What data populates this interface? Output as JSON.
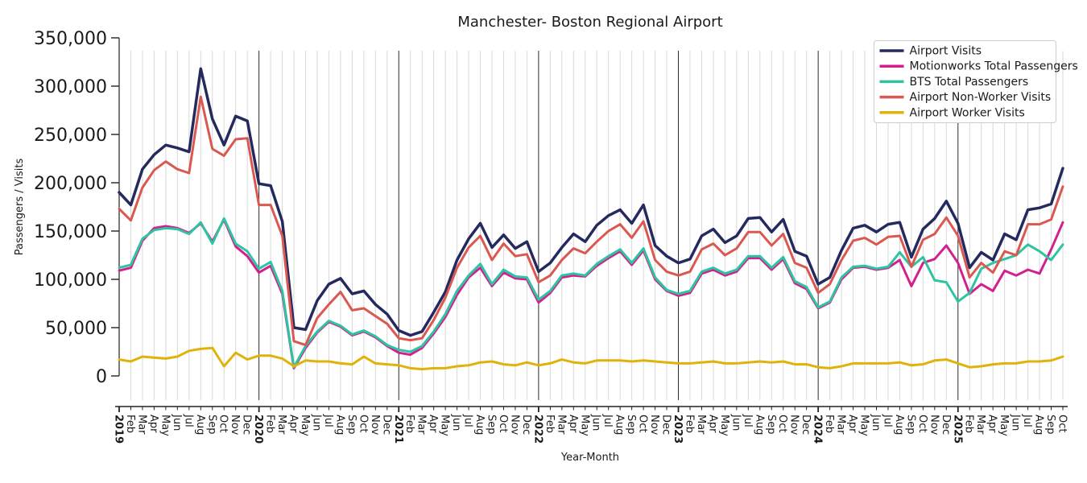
{
  "title": "Manchester- Boston Regional Airport",
  "chart_data": {
    "type": "line",
    "title": "Manchester- Boston Regional Airport",
    "xlabel": "Year-Month",
    "ylabel": "Passengers / Visits",
    "ylim": [
      0,
      350000
    ],
    "y_ticks": [
      0,
      50000,
      100000,
      150000,
      200000,
      250000,
      300000,
      350000
    ],
    "grid": "vertical gridline per month, dark vertical line at each January",
    "legend_position": "upper right",
    "x_labels": [
      "2019",
      "Feb",
      "Mar",
      "Apr",
      "May",
      "Jun",
      "Jul",
      "Aug",
      "Sep",
      "Oct",
      "Nov",
      "Dec",
      "2020",
      "Feb",
      "Mar",
      "Apr",
      "May",
      "Jun",
      "Jul",
      "Aug",
      "Sep",
      "Oct",
      "Nov",
      "Dec",
      "2021",
      "Feb",
      "Mar",
      "Apr",
      "May",
      "Jun",
      "Jul",
      "Aug",
      "Sep",
      "Oct",
      "Nov",
      "Dec",
      "2022",
      "Feb",
      "Mar",
      "Apr",
      "May",
      "Jun",
      "Jul",
      "Aug",
      "Sep",
      "Oct",
      "Nov",
      "Dec",
      "2023",
      "Feb",
      "Mar",
      "Apr",
      "May",
      "Jun",
      "Jul",
      "Aug",
      "Sep",
      "Oct",
      "Nov",
      "Dec",
      "2024",
      "Feb",
      "Mar",
      "Apr",
      "May",
      "Jun",
      "Jul",
      "Aug",
      "Sep",
      "Oct",
      "Nov",
      "Dec",
      "2025",
      "Feb",
      "Mar",
      "Apr",
      "May",
      "Jun",
      "Jul",
      "Aug",
      "Sep",
      "Oct"
    ],
    "series": [
      {
        "name": "Airport Visits",
        "color": "#252a5e",
        "stroke_width": 3.5,
        "values": [
          190000,
          177000,
          214000,
          229000,
          239000,
          236000,
          232000,
          318000,
          266000,
          239000,
          269000,
          264000,
          199000,
          197000,
          160000,
          50000,
          48000,
          78000,
          95000,
          101000,
          85000,
          88000,
          74000,
          64000,
          47000,
          42000,
          46000,
          66000,
          87000,
          120000,
          142000,
          158000,
          133000,
          146000,
          132000,
          139000,
          108000,
          117000,
          133000,
          147000,
          139000,
          156000,
          166000,
          172000,
          158000,
          177000,
          135000,
          124000,
          117000,
          121000,
          145000,
          152000,
          138000,
          145000,
          163000,
          164000,
          149000,
          162000,
          129000,
          124000,
          95000,
          102000,
          130000,
          153000,
          156000,
          149000,
          157000,
          159000,
          123000,
          152000,
          163000,
          181000,
          158000,
          112000,
          128000,
          120000,
          147000,
          141000,
          172000,
          174000,
          178000,
          215000
        ]
      },
      {
        "name": "Motionworks Total Passengers",
        "color": "#d2218f",
        "stroke_width": 3,
        "values": [
          109000,
          112000,
          140000,
          153000,
          155000,
          153000,
          148000,
          158000,
          139000,
          162000,
          134000,
          124000,
          107000,
          114000,
          85000,
          8000,
          29000,
          45000,
          56000,
          51000,
          42000,
          46000,
          40000,
          31000,
          24000,
          22000,
          29000,
          44000,
          61000,
          84000,
          102000,
          112000,
          93000,
          107000,
          101000,
          100000,
          76000,
          86000,
          102000,
          104000,
          103000,
          114000,
          122000,
          129000,
          115000,
          130000,
          100000,
          88000,
          83000,
          86000,
          106000,
          110000,
          104000,
          108000,
          122000,
          122000,
          110000,
          121000,
          96000,
          90000,
          70000,
          76000,
          100000,
          112000,
          113000,
          110000,
          112000,
          120000,
          93000,
          117000,
          121000,
          135000,
          117000,
          85000,
          95000,
          88000,
          109000,
          104000,
          110000,
          106000,
          131000,
          159000
        ]
      },
      {
        "name": "BTS Total Passengers",
        "color": "#2ec4a2",
        "stroke_width": 3,
        "values": [
          112000,
          115000,
          142000,
          151000,
          153000,
          152000,
          147000,
          159000,
          137000,
          163000,
          137000,
          129000,
          111000,
          118000,
          88000,
          9000,
          31000,
          46000,
          57000,
          52000,
          43000,
          47000,
          41000,
          32000,
          27000,
          25000,
          31000,
          46000,
          64000,
          88000,
          104000,
          116000,
          95000,
          110000,
          103000,
          102000,
          79000,
          88000,
          104000,
          106000,
          104000,
          116000,
          124000,
          131000,
          117000,
          132000,
          102000,
          89000,
          85000,
          88000,
          108000,
          112000,
          106000,
          110000,
          124000,
          124000,
          112000,
          123000,
          98000,
          92000,
          71000,
          77000,
          102000,
          113000,
          114000,
          111000,
          113000,
          128000,
          113000,
          123000,
          99000,
          97000,
          77000,
          86000,
          111000,
          117000,
          121000,
          125000,
          136000,
          129000,
          120000,
          136000
        ]
      },
      {
        "name": "Airport Non-Worker Visits",
        "color": "#da5850",
        "stroke_width": 3,
        "values": [
          173000,
          161000,
          195000,
          213000,
          222000,
          214000,
          210000,
          289000,
          235000,
          228000,
          245000,
          246000,
          177000,
          177000,
          145000,
          36000,
          32000,
          60000,
          74000,
          87000,
          68000,
          70000,
          62000,
          54000,
          39000,
          37000,
          39000,
          58000,
          81000,
          112000,
          133000,
          145000,
          120000,
          137000,
          124000,
          126000,
          97000,
          104000,
          120000,
          132000,
          127000,
          139000,
          150000,
          157000,
          143000,
          160000,
          120000,
          108000,
          104000,
          108000,
          131000,
          137000,
          125000,
          132000,
          149000,
          149000,
          135000,
          147000,
          117000,
          112000,
          86000,
          95000,
          120000,
          140000,
          143000,
          136000,
          144000,
          145000,
          113000,
          141000,
          147000,
          164000,
          145000,
          102000,
          117000,
          107000,
          129000,
          125000,
          157000,
          157000,
          162000,
          196000
        ]
      },
      {
        "name": "Airport Worker Visits",
        "color": "#e0b20b",
        "stroke_width": 3,
        "values": [
          17000,
          15000,
          20000,
          19000,
          18000,
          20000,
          26000,
          28000,
          29000,
          10000,
          24000,
          17000,
          21000,
          21000,
          18000,
          10000,
          16000,
          15000,
          15000,
          13000,
          12000,
          20000,
          13000,
          12000,
          11000,
          8000,
          7000,
          8000,
          8000,
          10000,
          11000,
          14000,
          15000,
          12000,
          11000,
          14000,
          11000,
          13000,
          17000,
          14000,
          13000,
          16000,
          16000,
          16000,
          15000,
          16000,
          15000,
          14000,
          13000,
          13000,
          14000,
          15000,
          13000,
          13000,
          14000,
          15000,
          14000,
          15000,
          12000,
          12000,
          9000,
          8000,
          10000,
          13000,
          13000,
          13000,
          13000,
          14000,
          11000,
          12000,
          16000,
          17000,
          13000,
          9000,
          10000,
          12000,
          13000,
          13000,
          15000,
          15000,
          16000,
          20000
        ]
      }
    ]
  },
  "colors": {
    "gridline": "#d8d8d8",
    "year_line": "#2b2b2b",
    "spine": "#222222",
    "legend_border": "#cccccc",
    "background": "#ffffff"
  }
}
